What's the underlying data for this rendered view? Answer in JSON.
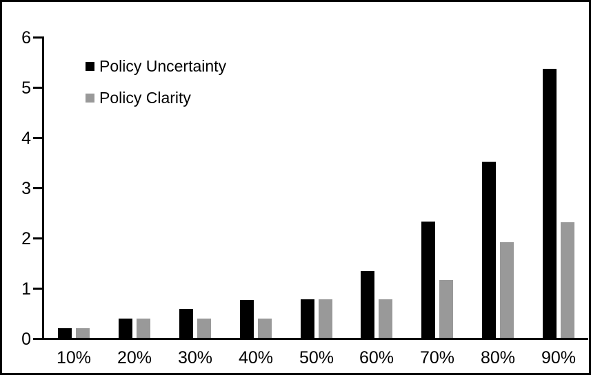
{
  "chart_data": {
    "type": "bar",
    "title": "",
    "xlabel": "",
    "ylabel": "",
    "categories": [
      "10%",
      "20%",
      "30%",
      "40%",
      "50%",
      "60%",
      "70%",
      "80%",
      "90%"
    ],
    "series": [
      {
        "name": "Policy Uncertainty",
        "color": "#000000",
        "values": [
          0.19,
          0.38,
          0.57,
          0.76,
          0.77,
          1.33,
          2.31,
          3.5,
          5.35
        ]
      },
      {
        "name": "Policy Clarity",
        "color": "#999999",
        "values": [
          0.19,
          0.38,
          0.38,
          0.38,
          0.77,
          0.77,
          1.15,
          1.9,
          2.3
        ]
      }
    ],
    "ylim": [
      0,
      6
    ],
    "yticks": [
      0,
      1,
      2,
      3,
      4,
      5,
      6
    ],
    "grid": false,
    "legend_position": "top-left"
  },
  "frame": {
    "background": "#ffffff",
    "border_color": "#000000"
  }
}
